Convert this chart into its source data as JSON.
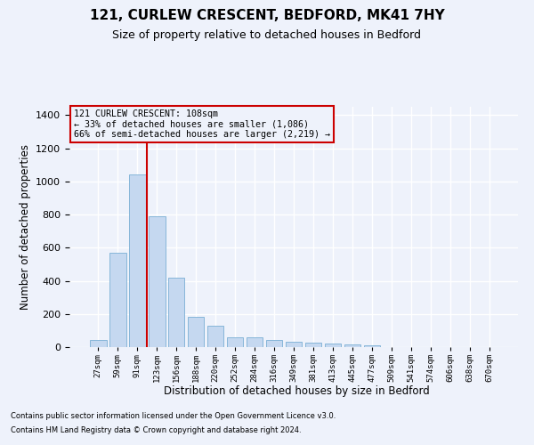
{
  "title_line1": "121, CURLEW CRESCENT, BEDFORD, MK41 7HY",
  "title_line2": "Size of property relative to detached houses in Bedford",
  "xlabel": "Distribution of detached houses by size in Bedford",
  "ylabel": "Number of detached properties",
  "footnote1": "Contains HM Land Registry data © Crown copyright and database right 2024.",
  "footnote2": "Contains public sector information licensed under the Open Government Licence v3.0.",
  "annotation_line1": "121 CURLEW CRESCENT: 108sqm",
  "annotation_line2": "← 33% of detached houses are smaller (1,086)",
  "annotation_line3": "66% of semi-detached houses are larger (2,219) →",
  "bar_labels": [
    "27sqm",
    "59sqm",
    "91sqm",
    "123sqm",
    "156sqm",
    "188sqm",
    "220sqm",
    "252sqm",
    "284sqm",
    "316sqm",
    "349sqm",
    "381sqm",
    "413sqm",
    "445sqm",
    "477sqm",
    "509sqm",
    "541sqm",
    "574sqm",
    "606sqm",
    "638sqm",
    "670sqm"
  ],
  "bar_values": [
    45,
    570,
    1040,
    790,
    420,
    180,
    130,
    60,
    60,
    45,
    30,
    25,
    20,
    15,
    10,
    0,
    0,
    0,
    0,
    0,
    0
  ],
  "bar_color": "#c5d8f0",
  "bar_edge_color": "#7aafd4",
  "vline_x": 2.5,
  "vline_color": "#cc0000",
  "ylim": [
    0,
    1450
  ],
  "yticks": [
    0,
    200,
    400,
    600,
    800,
    1000,
    1200,
    1400
  ],
  "background_color": "#eef2fb",
  "grid_color": "#ffffff",
  "annotation_box_color": "#cc0000",
  "title_fontsize": 11,
  "subtitle_fontsize": 9
}
